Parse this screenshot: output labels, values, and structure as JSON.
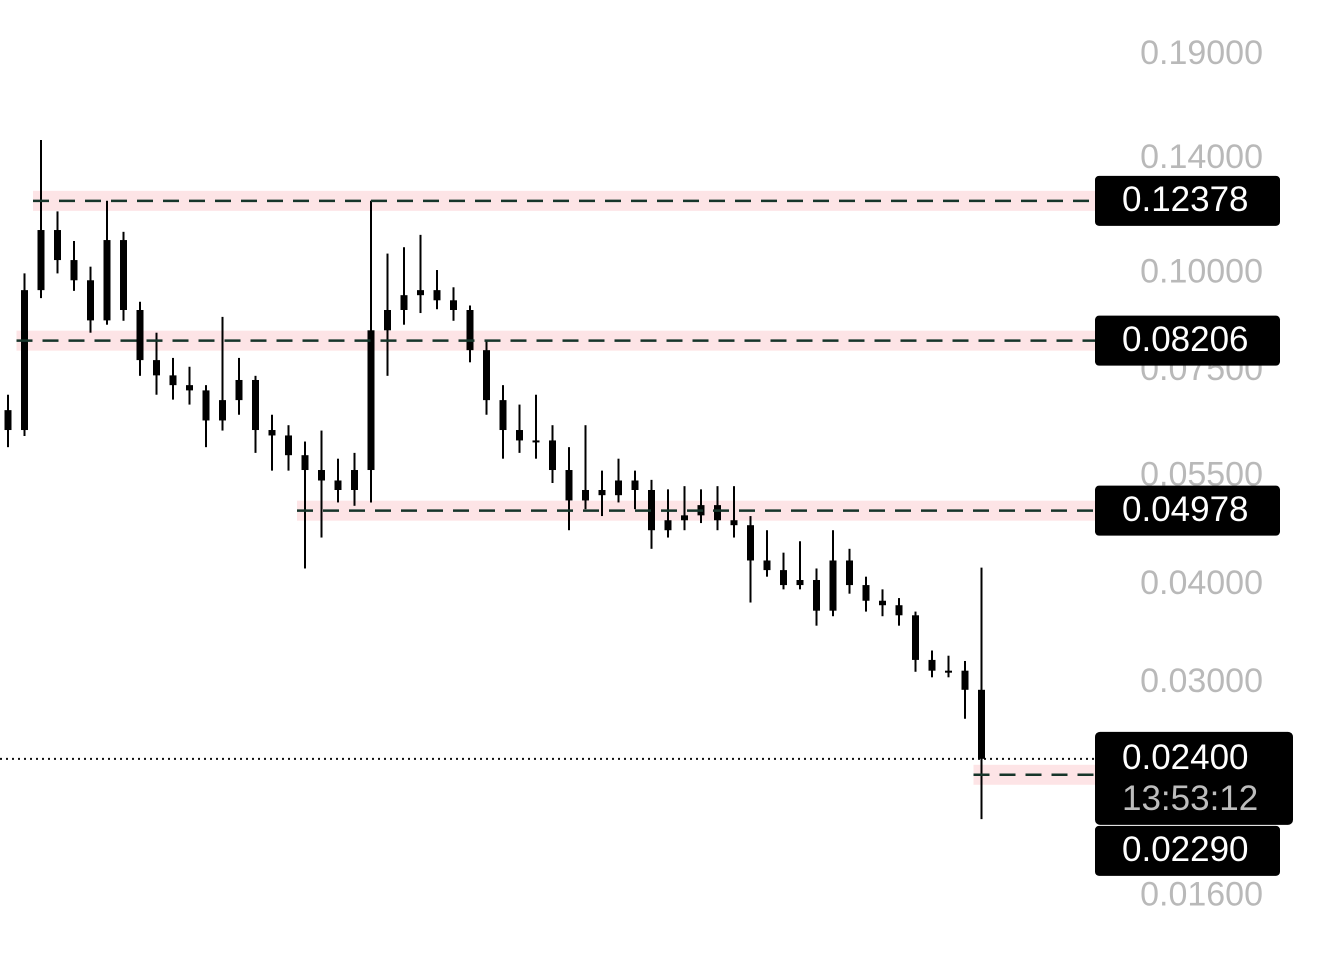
{
  "chart_data": {
    "type": "candlestick",
    "log_scale": true,
    "color": "#000000",
    "ylim": [
      0.0129,
      0.2234
    ],
    "yticks": [
      {
        "value": 0.19,
        "label": "0.19000"
      },
      {
        "value": 0.14,
        "label": "0.14000"
      },
      {
        "value": 0.1,
        "label": "0.10000"
      },
      {
        "value": 0.075,
        "label": "0.07500"
      },
      {
        "value": 0.055,
        "label": "0.05500"
      },
      {
        "value": 0.04,
        "label": "0.04000"
      },
      {
        "value": 0.03,
        "label": "0.03000"
      },
      {
        "value": 0.016,
        "label": "0.01600"
      }
    ],
    "open": [
      0.0669,
      0.0631,
      0.0952,
      0.1136,
      0.104,
      0.098,
      0.0871,
      0.1103,
      0.0898,
      0.0775,
      0.0741,
      0.072,
      0.0709,
      0.0649,
      0.0689,
      0.0731,
      0.0631,
      0.0621,
      0.0586,
      0.0561,
      0.0544,
      0.0529,
      0.0561,
      0.0846,
      0.0898,
      0.0938,
      0.0952,
      0.0924,
      0.0898,
      0.0798,
      0.0689,
      0.0631,
      0.0612,
      0.0612,
      0.0561,
      0.0513,
      0.0529,
      0.0521,
      0.0544,
      0.0529,
      0.047,
      0.0484,
      0.0491,
      0.0506,
      0.0484,
      0.0477,
      0.043,
      0.0418,
      0.04,
      0.0406,
      0.0371,
      0.043,
      0.04,
      0.0382,
      0.0377,
      0.0366,
      0.0321,
      0.0311,
      0.0311,
      0.0294
    ],
    "high": [
      0.07,
      0.1,
      0.148,
      0.12,
      0.11,
      0.102,
      0.1238,
      0.113,
      0.092,
      0.084,
      0.078,
      0.076,
      0.072,
      0.088,
      0.078,
      0.074,
      0.066,
      0.064,
      0.061,
      0.063,
      0.058,
      0.059,
      0.1238,
      0.106,
      0.108,
      0.112,
      0.101,
      0.096,
      0.091,
      0.082,
      0.072,
      0.068,
      0.07,
      0.064,
      0.06,
      0.064,
      0.056,
      0.058,
      0.056,
      0.0545,
      0.053,
      0.0535,
      0.053,
      0.0535,
      0.0535,
      0.049,
      0.047,
      0.044,
      0.0455,
      0.042,
      0.047,
      0.0445,
      0.041,
      0.0395,
      0.0385,
      0.037,
      0.033,
      0.0325,
      0.032,
      0.0421
    ],
    "low": [
      0.06,
      0.062,
      0.093,
      0.1,
      0.095,
      0.084,
      0.086,
      0.087,
      0.074,
      0.07,
      0.069,
      0.068,
      0.06,
      0.063,
      0.066,
      0.059,
      0.056,
      0.056,
      0.042,
      0.046,
      0.051,
      0.0505,
      0.051,
      0.074,
      0.086,
      0.089,
      0.09,
      0.087,
      0.077,
      0.066,
      0.058,
      0.059,
      0.058,
      0.054,
      0.047,
      0.05,
      0.049,
      0.051,
      0.05,
      0.0445,
      0.046,
      0.047,
      0.048,
      0.047,
      0.046,
      0.038,
      0.041,
      0.0395,
      0.0395,
      0.0355,
      0.0365,
      0.039,
      0.037,
      0.0365,
      0.0355,
      0.031,
      0.0305,
      0.0305,
      0.027,
      0.0201
    ],
    "close": [
      0.0631,
      0.0952,
      0.1136,
      0.104,
      0.098,
      0.0871,
      0.1103,
      0.0898,
      0.0775,
      0.0741,
      0.072,
      0.0709,
      0.0649,
      0.0689,
      0.0731,
      0.0631,
      0.0621,
      0.0586,
      0.0561,
      0.0544,
      0.0529,
      0.0561,
      0.0846,
      0.0898,
      0.0938,
      0.0952,
      0.0924,
      0.0898,
      0.0798,
      0.0689,
      0.0631,
      0.0612,
      0.0612,
      0.0561,
      0.0513,
      0.0529,
      0.0521,
      0.0544,
      0.0529,
      0.047,
      0.0484,
      0.0491,
      0.0506,
      0.0484,
      0.0477,
      0.043,
      0.0418,
      0.04,
      0.0406,
      0.0371,
      0.043,
      0.04,
      0.0382,
      0.0377,
      0.0366,
      0.0321,
      0.0311,
      0.0311,
      0.0294,
      0.024
    ],
    "price_lines": [
      {
        "value": 0.12378,
        "label": "0.12378"
      },
      {
        "value": 0.08206,
        "label": "0.08206"
      },
      {
        "value": 0.04978,
        "label": "0.04978"
      },
      {
        "value": 0.0229,
        "label": "0.02290"
      }
    ],
    "last_price": {
      "value": 0.024,
      "label": "0.02400"
    },
    "countdown": "13:53:12"
  }
}
